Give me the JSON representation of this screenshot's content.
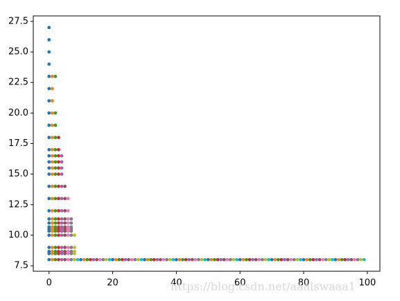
{
  "chart_data": {
    "type": "scatter",
    "xlim": [
      -4.95,
      103.95
    ],
    "xticks": [
      0,
      20,
      40,
      60,
      80,
      100
    ],
    "ylim": [
      7.05,
      27.95
    ],
    "yticks": [
      7.5,
      10.0,
      12.5,
      15.0,
      17.5,
      20.0,
      22.5,
      25.0,
      27.5
    ],
    "color_cycle": [
      "#1f77b4",
      "#ff7f0e",
      "#2ca02c",
      "#d62728",
      "#9467bd",
      "#8c564b",
      "#e377c2",
      "#7f7f7f",
      "#bcbd22",
      "#17becf"
    ],
    "rows": [
      {
        "y": 27,
        "x": [
          0
        ]
      },
      {
        "y": 26,
        "x": [
          0
        ]
      },
      {
        "y": 25,
        "x": [
          0
        ]
      },
      {
        "y": 24,
        "x": [
          0
        ]
      },
      {
        "y": 23,
        "x": [
          0,
          1,
          2
        ]
      },
      {
        "y": 22,
        "x": [
          0,
          1
        ]
      },
      {
        "y": 21,
        "x": [
          0,
          1
        ]
      },
      {
        "y": 20,
        "x": [
          0,
          1,
          2
        ]
      },
      {
        "y": 19,
        "x": [
          0,
          1,
          2
        ]
      },
      {
        "y": 18,
        "x": [
          0,
          1,
          2,
          3
        ]
      },
      {
        "y": 17,
        "x": [
          0,
          1,
          2,
          3
        ]
      },
      {
        "y": 16.5,
        "x": [
          0,
          1,
          2,
          3,
          4
        ]
      },
      {
        "y": 16,
        "x": [
          0,
          1,
          2,
          3,
          4
        ]
      },
      {
        "y": 15.5,
        "x": [
          0,
          1,
          2,
          3,
          4
        ]
      },
      {
        "y": 15,
        "x": [
          0,
          1,
          2,
          3,
          4
        ]
      },
      {
        "y": 14,
        "x": [
          0,
          1,
          2,
          3,
          4,
          5
        ]
      },
      {
        "y": 13,
        "x": [
          0,
          1,
          2,
          3,
          4,
          5,
          6
        ]
      },
      {
        "y": 12,
        "x": [
          0,
          1,
          2,
          3,
          4,
          5,
          6
        ]
      },
      {
        "y": 11.33,
        "x": [
          0,
          1,
          2,
          3,
          4,
          5,
          6,
          7
        ]
      },
      {
        "y": 11,
        "x": [
          0,
          1,
          2,
          3,
          4,
          5,
          6,
          7
        ]
      },
      {
        "y": 10.67,
        "x": [
          0,
          1,
          2,
          3,
          4,
          5,
          6,
          7
        ]
      },
      {
        "y": 10.5,
        "x": [
          0,
          1,
          2,
          3,
          4,
          5,
          6,
          7
        ]
      },
      {
        "y": 10.33,
        "x": [
          0,
          1,
          2,
          3,
          4,
          5,
          6,
          7
        ]
      },
      {
        "y": 10,
        "x": [
          0,
          1,
          2,
          3,
          4,
          5,
          6,
          7,
          8
        ]
      },
      {
        "y": 9,
        "x": [
          0,
          1,
          2,
          3,
          4,
          5,
          6,
          7,
          8
        ]
      },
      {
        "y": 8.67,
        "x": [
          0,
          1,
          2,
          3,
          4,
          5,
          6,
          7,
          8
        ]
      },
      {
        "y": 8.5,
        "x": [
          0,
          1,
          2,
          3,
          4,
          5,
          6,
          7,
          8
        ]
      },
      {
        "y": 8,
        "x": [
          0,
          1,
          2,
          3,
          4,
          5,
          6,
          7,
          8,
          9,
          10,
          11,
          12,
          13,
          14,
          15,
          16,
          17,
          18,
          19,
          20,
          21,
          22,
          23,
          24,
          25,
          26,
          27,
          28,
          29,
          30,
          31,
          32,
          33,
          34,
          35,
          36,
          37,
          38,
          39,
          40,
          41,
          42,
          43,
          44,
          45,
          46,
          47,
          48,
          49,
          50,
          51,
          52,
          53,
          54,
          55,
          56,
          57,
          58,
          59,
          60,
          61,
          62,
          63,
          64,
          65,
          66,
          67,
          68,
          69,
          70,
          71,
          72,
          73,
          74,
          75,
          76,
          77,
          78,
          79,
          80,
          81,
          82,
          83,
          84,
          85,
          86,
          87,
          88,
          89,
          90,
          91,
          92,
          93,
          94,
          95,
          96,
          97,
          98,
          99
        ]
      }
    ],
    "watermark": "https://blog.csdn.net/aaalswaaa1"
  }
}
